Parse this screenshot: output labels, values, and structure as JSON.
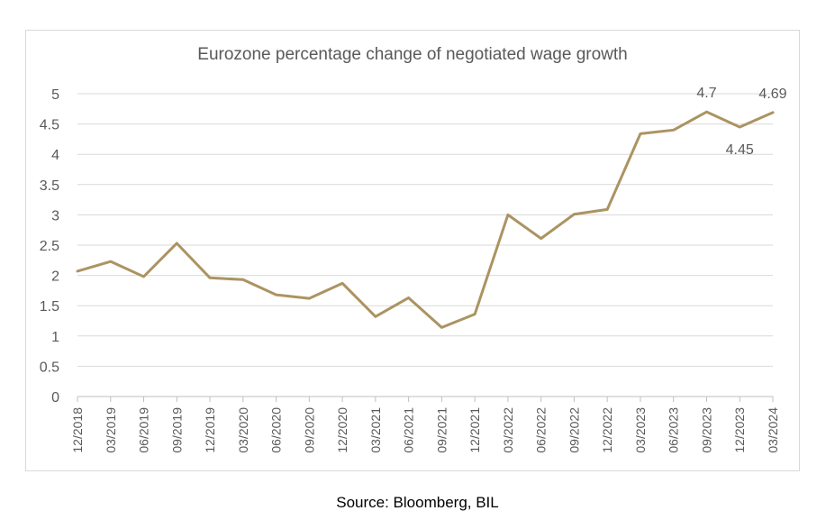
{
  "source_note": "Source: Bloomberg, BIL",
  "colors": {
    "line": "#AB9462",
    "grid": "#d9d9d9",
    "text": "#595959"
  },
  "chart_data": {
    "type": "line",
    "title": "Eurozone percentage change of negotiated wage growth",
    "xlabel": "",
    "ylabel": "",
    "ylim": [
      0,
      5
    ],
    "yticks": [
      "0",
      "0.5",
      "1",
      "1.5",
      "2",
      "2.5",
      "3",
      "3.5",
      "4",
      "4.5",
      "5"
    ],
    "grid": true,
    "legend": "none",
    "categories": [
      "12/2018",
      "03/2019",
      "06/2019",
      "09/2019",
      "12/2019",
      "03/2020",
      "06/2020",
      "09/2020",
      "12/2020",
      "03/2021",
      "06/2021",
      "09/2021",
      "12/2021",
      "03/2022",
      "06/2022",
      "09/2022",
      "12/2022",
      "03/2023",
      "06/2023",
      "09/2023",
      "12/2023",
      "03/2024"
    ],
    "series": [
      {
        "values": [
          2.07,
          2.23,
          1.98,
          2.53,
          1.96,
          1.93,
          1.68,
          1.62,
          1.87,
          1.32,
          1.63,
          1.14,
          1.36,
          3.0,
          2.61,
          3.01,
          3.09,
          4.34,
          4.4,
          4.7,
          4.45,
          4.69
        ]
      }
    ],
    "data_labels": [
      {
        "index": 19,
        "text": "4.7",
        "position": "above"
      },
      {
        "index": 20,
        "text": "4.45",
        "position": "below"
      },
      {
        "index": 21,
        "text": "4.69",
        "position": "above"
      }
    ]
  }
}
